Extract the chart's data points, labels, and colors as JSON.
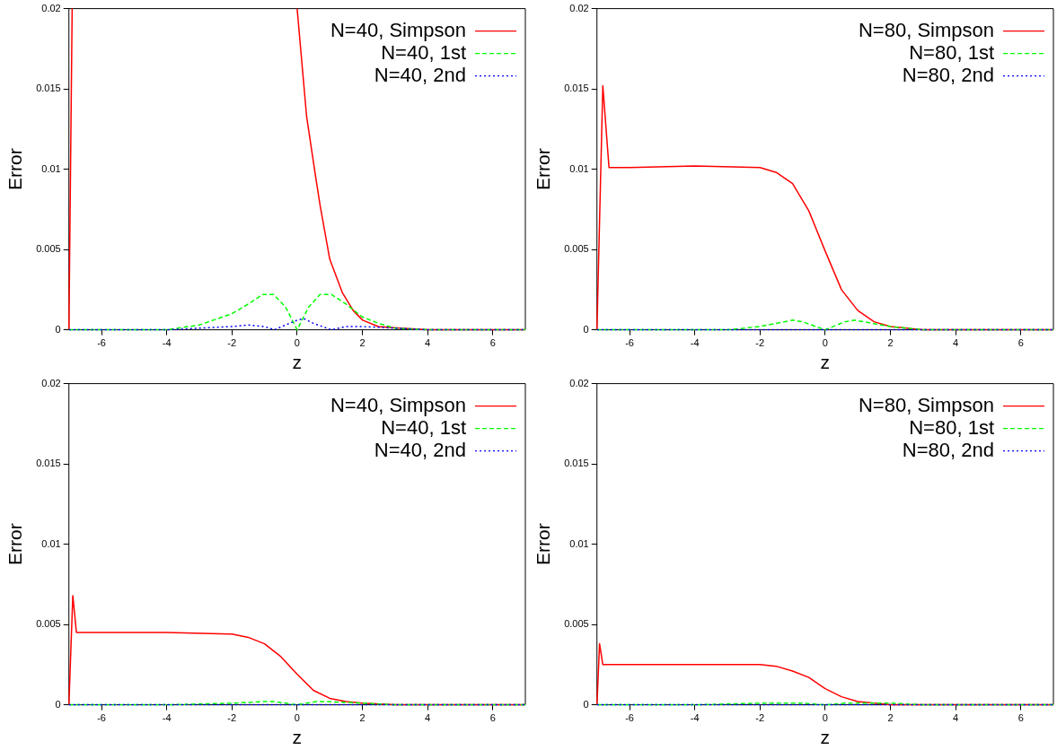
{
  "chart_data": [
    {
      "type": "line",
      "xlabel": "z",
      "ylabel": "Error",
      "xlim": [
        -7,
        7
      ],
      "xticks": [
        -6,
        -4,
        -2,
        0,
        2,
        4,
        6
      ],
      "ylim": [
        0,
        0.02
      ],
      "yticks": [
        0,
        0.005,
        0.01,
        0.015,
        0.02
      ],
      "legend": "top right",
      "series": [
        {
          "name": "N=40, Simpson",
          "color": "#ff0000",
          "line_style": "solid",
          "x": [
            -7,
            -6.9,
            -6.8,
            0,
            0.29,
            0.57,
            0.7,
            1.0,
            1.39,
            1.72,
            2.01,
            2.49,
            3.16,
            4,
            7
          ],
          "values": [
            0,
            0.02,
            null,
            0.02,
            0.0133,
            0.0095,
            0.0078,
            0.0044,
            0.0023,
            0.0012,
            0.0006,
            0.0002,
            0.0001,
            0,
            0
          ]
        },
        {
          "name": "N=40, 1st",
          "color": "#00ff00",
          "line_style": "dashed",
          "x": [
            -7,
            -4,
            -3,
            -2,
            -1.5,
            -1.05,
            -0.72,
            -0.35,
            0,
            0.35,
            0.7,
            1.05,
            1.5,
            2,
            2.5,
            3,
            4,
            7
          ],
          "values": [
            0,
            0,
            0.0003,
            0.001,
            0.0016,
            0.0022,
            0.0022,
            0.0014,
            0,
            0.0014,
            0.0022,
            0.0022,
            0.0016,
            0.0008,
            0.0004,
            0.0001,
            0,
            0
          ]
        },
        {
          "name": "N=40, 2nd",
          "color": "#0000ff",
          "line_style": "dotted",
          "x": [
            -7,
            -4,
            -2,
            -1.5,
            -1,
            -0.7,
            0,
            0.2,
            0.5,
            1.05,
            1.5,
            2,
            3,
            4,
            7
          ],
          "values": [
            0,
            0,
            0.0002,
            0.0003,
            0.0002,
            0,
            0.0006,
            0.0007,
            0.0004,
            0,
            0.0002,
            0.0002,
            0.0001,
            0,
            0
          ]
        }
      ]
    },
    {
      "type": "line",
      "xlabel": "z",
      "ylabel": "Error",
      "xlim": [
        -7,
        7
      ],
      "xticks": [
        -6,
        -4,
        -2,
        0,
        2,
        4,
        6
      ],
      "ylim": [
        0,
        0.02
      ],
      "yticks": [
        0,
        0.005,
        0.01,
        0.015,
        0.02
      ],
      "legend": "top right",
      "series": [
        {
          "name": "N=80, Simpson",
          "color": "#ff0000",
          "line_style": "solid",
          "x": [
            -7,
            -6.82,
            -6.63,
            -6,
            -4,
            -2,
            -1.5,
            -1,
            -0.5,
            0,
            0.5,
            1,
            1.5,
            2,
            2.5,
            3,
            4,
            7
          ],
          "values": [
            0,
            0.0152,
            0.0101,
            0.0101,
            0.0102,
            0.0101,
            0.0098,
            0.0091,
            0.0074,
            0.0049,
            0.0025,
            0.0012,
            0.0005,
            0.0002,
            0.0001,
            0,
            0,
            0
          ]
        },
        {
          "name": "N=80, 1st",
          "color": "#00ff00",
          "line_style": "dashed",
          "x": [
            -7,
            -4,
            -3,
            -2,
            -1,
            -0.7,
            0,
            0.6,
            0.9,
            2,
            3,
            4,
            7
          ],
          "values": [
            0,
            0,
            0,
            0.0002,
            0.0006,
            0.0005,
            0,
            0.0005,
            0.0006,
            0.0002,
            0,
            0,
            0
          ]
        },
        {
          "name": "N=80, 2nd",
          "color": "#0000ff",
          "line_style": "dotted",
          "x": [
            -7,
            7
          ],
          "values": [
            0,
            0
          ]
        }
      ]
    },
    {
      "type": "line",
      "xlabel": "z",
      "ylabel": "Error",
      "xlim": [
        -7,
        7
      ],
      "xticks": [
        -6,
        -4,
        -2,
        0,
        2,
        4,
        6
      ],
      "ylim": [
        0,
        0.02
      ],
      "yticks": [
        0,
        0.005,
        0.01,
        0.015,
        0.02
      ],
      "legend": "top right",
      "series": [
        {
          "name": "N=40, Simpson",
          "color": "#ff0000",
          "line_style": "solid",
          "x": [
            -7,
            -6.88,
            -6.77,
            -4,
            -2,
            -1.5,
            -1,
            -0.5,
            0,
            0.5,
            1,
            1.5,
            2,
            3,
            4,
            7
          ],
          "values": [
            0,
            0.0068,
            0.0045,
            0.0045,
            0.0044,
            0.0042,
            0.0038,
            0.003,
            0.0019,
            0.0009,
            0.0004,
            0.0002,
            0.0001,
            0,
            0,
            0
          ]
        },
        {
          "name": "N=40, 1st",
          "color": "#00ff00",
          "line_style": "dashed",
          "x": [
            -7,
            -4,
            -2,
            -1,
            -0.7,
            0,
            0.6,
            0.9,
            2,
            3,
            4,
            7
          ],
          "values": [
            0,
            0,
            0.0001,
            0.0002,
            0.0002,
            0,
            0.0002,
            0.0002,
            0.0001,
            0,
            0,
            0
          ]
        },
        {
          "name": "N=40, 2nd",
          "color": "#0000ff",
          "line_style": "dotted",
          "x": [
            -7,
            7
          ],
          "values": [
            0,
            0
          ]
        }
      ]
    },
    {
      "type": "line",
      "xlabel": "z",
      "ylabel": "Error",
      "xlim": [
        -7,
        7
      ],
      "xticks": [
        -6,
        -4,
        -2,
        0,
        2,
        4,
        6
      ],
      "ylim": [
        0,
        0.02
      ],
      "yticks": [
        0,
        0.005,
        0.01,
        0.015,
        0.02
      ],
      "legend": "top right",
      "series": [
        {
          "name": "N=80, Simpson",
          "color": "#ff0000",
          "line_style": "solid",
          "x": [
            -7,
            -6.92,
            -6.82,
            -4,
            -2,
            -1.5,
            -1,
            -0.5,
            0,
            0.5,
            1,
            1.5,
            2,
            3,
            7
          ],
          "values": [
            0,
            0.0038,
            0.0025,
            0.0025,
            0.0025,
            0.0024,
            0.0021,
            0.0017,
            0.001,
            0.0005,
            0.0002,
            0.0001,
            0,
            0,
            0
          ]
        },
        {
          "name": "N=80, 1st",
          "color": "#00ff00",
          "line_style": "dashed",
          "x": [
            -7,
            -4,
            -2,
            -1,
            -0.7,
            0,
            0.6,
            0.9,
            2,
            3,
            7
          ],
          "values": [
            0,
            0,
            0.0001,
            0.0001,
            0.0001,
            0,
            0.0001,
            0.0001,
            0.0001,
            0,
            0
          ]
        },
        {
          "name": "N=80, 2nd",
          "color": "#0000ff",
          "line_style": "dotted",
          "x": [
            -7,
            7
          ],
          "values": [
            0,
            0
          ]
        }
      ]
    }
  ]
}
